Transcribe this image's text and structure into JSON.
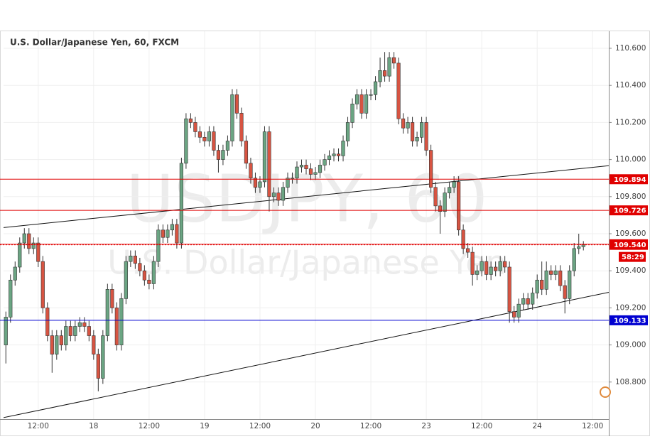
{
  "chart_data": {
    "type": "candlestick",
    "title": "U.S. Dollar/Japanese Yen, 60, FXCM",
    "watermark": "USDJPY, 60",
    "watermark_subtitle": "U.S. Dollar/Japanese Yen",
    "categories": [
      null,
      null,
      null,
      null,
      null,
      null,
      null,
      "12:00",
      null,
      null,
      null,
      null,
      null,
      null,
      null,
      null,
      null,
      null,
      null,
      "18",
      null,
      null,
      null,
      null,
      null,
      null,
      null,
      null,
      null,
      null,
      null,
      "12:00",
      null,
      null,
      null,
      null,
      null,
      null,
      null,
      null,
      null,
      null,
      null,
      "19",
      null,
      null,
      null,
      null,
      null,
      null,
      null,
      null,
      null,
      null,
      null,
      "12:00",
      null,
      null,
      null,
      null,
      null,
      null,
      null,
      null,
      null,
      null,
      null,
      "20",
      null,
      null,
      null,
      null,
      null,
      null,
      null,
      null,
      null,
      null,
      null,
      "12:00",
      null,
      null,
      null,
      null,
      null,
      null,
      null,
      null,
      null,
      null,
      null,
      "23",
      null,
      null,
      null,
      null,
      null,
      null,
      null,
      null,
      null,
      null,
      null,
      "12:00",
      null,
      null,
      null,
      null,
      null,
      null,
      null,
      null,
      null,
      null,
      null,
      "24",
      null,
      null,
      null,
      null,
      null,
      null,
      null,
      null,
      null,
      null,
      null,
      "12:00",
      null,
      null,
      null
    ],
    "open": [
      109.0,
      109.15,
      109.35,
      109.42,
      109.55,
      109.6,
      109.52,
      109.55,
      109.45,
      109.2,
      109.05,
      108.95,
      109.05,
      109.0,
      109.1,
      109.05,
      109.1,
      109.12,
      109.1,
      109.05,
      108.95,
      108.82,
      109.05,
      109.3,
      109.2,
      109.0,
      109.25,
      109.45,
      109.48,
      109.44,
      109.4,
      109.35,
      109.33,
      109.45,
      109.62,
      109.58,
      109.62,
      109.65,
      109.55,
      109.98,
      110.22,
      110.2,
      110.15,
      110.12,
      110.1,
      110.15,
      110.05,
      110.0,
      110.05,
      110.1,
      110.35,
      110.25,
      110.1,
      109.98,
      109.9,
      109.85,
      109.88,
      110.15,
      109.8,
      109.82,
      109.78,
      109.85,
      109.9,
      109.9,
      109.96,
      109.97,
      109.95,
      109.92,
      109.93,
      109.97,
      110.0,
      110.02,
      110.03,
      110.02,
      110.1,
      110.2,
      110.3,
      110.35,
      110.25,
      110.35,
      110.35,
      110.42,
      110.48,
      110.45,
      110.55,
      110.52,
      110.22,
      110.17,
      110.2,
      110.1,
      110.12,
      110.2,
      110.05,
      109.85,
      109.75,
      109.72,
      109.82,
      109.85,
      109.88,
      109.62,
      109.52,
      109.5,
      109.38,
      109.4,
      109.45,
      109.38,
      109.42,
      109.4,
      109.45,
      109.42,
      109.18,
      109.15,
      109.22,
      109.25,
      109.22,
      109.28,
      109.35,
      109.3,
      109.4,
      109.38,
      109.4,
      109.32,
      109.25,
      109.4,
      109.52,
      109.53,
      null,
      null,
      null,
      null,
      null
    ],
    "high": [
      109.18,
      109.38,
      109.45,
      109.58,
      109.63,
      109.63,
      109.58,
      109.58,
      109.48,
      109.23,
      109.08,
      109.08,
      109.08,
      109.13,
      109.13,
      109.13,
      109.15,
      109.15,
      109.13,
      109.08,
      108.98,
      109.08,
      109.33,
      109.33,
      109.23,
      109.28,
      109.48,
      109.51,
      109.51,
      109.47,
      109.43,
      109.38,
      109.48,
      109.65,
      109.65,
      109.65,
      109.68,
      109.68,
      110.01,
      110.25,
      110.25,
      110.23,
      110.18,
      110.15,
      110.18,
      110.18,
      110.08,
      110.08,
      110.13,
      110.38,
      110.38,
      110.28,
      110.13,
      110.01,
      109.93,
      109.91,
      110.18,
      110.18,
      109.85,
      109.85,
      109.88,
      109.93,
      109.93,
      109.99,
      110.0,
      110.0,
      109.98,
      109.96,
      110.0,
      110.03,
      110.05,
      110.06,
      110.06,
      110.13,
      110.23,
      110.33,
      110.38,
      110.38,
      110.38,
      110.38,
      110.45,
      110.55,
      110.58,
      110.58,
      110.58,
      110.55,
      110.25,
      110.23,
      110.23,
      110.15,
      110.23,
      110.23,
      110.08,
      109.88,
      109.78,
      109.85,
      109.88,
      109.91,
      109.91,
      109.65,
      109.55,
      109.53,
      109.43,
      109.48,
      109.48,
      109.45,
      109.45,
      109.48,
      109.48,
      109.45,
      109.21,
      109.25,
      109.28,
      109.28,
      109.31,
      109.38,
      109.45,
      109.45,
      109.43,
      109.43,
      109.43,
      109.35,
      109.43,
      109.55,
      109.6,
      109.56,
      null,
      null,
      null,
      null,
      null
    ],
    "low": [
      108.9,
      109.12,
      109.32,
      109.39,
      109.52,
      109.49,
      109.49,
      109.42,
      109.17,
      109.02,
      108.85,
      108.92,
      108.97,
      108.97,
      109.02,
      109.02,
      109.07,
      109.07,
      109.02,
      108.92,
      108.75,
      108.79,
      109.02,
      109.17,
      108.97,
      108.97,
      109.22,
      109.42,
      109.41,
      109.37,
      109.32,
      109.3,
      109.3,
      109.42,
      109.55,
      109.55,
      109.59,
      109.52,
      109.52,
      109.95,
      110.17,
      110.12,
      110.09,
      110.07,
      110.07,
      110.02,
      109.93,
      109.97,
      110.02,
      110.07,
      110.22,
      110.07,
      109.95,
      109.87,
      109.82,
      109.82,
      109.85,
      109.72,
      109.77,
      109.75,
      109.75,
      109.82,
      109.87,
      109.87,
      109.93,
      109.92,
      109.89,
      109.89,
      109.9,
      109.94,
      109.97,
      109.99,
      109.99,
      109.99,
      110.07,
      110.17,
      110.27,
      110.22,
      110.22,
      110.32,
      110.32,
      110.39,
      110.42,
      110.42,
      110.49,
      110.19,
      110.14,
      110.14,
      110.07,
      110.07,
      110.09,
      110.02,
      109.82,
      109.72,
      109.6,
      109.69,
      109.79,
      109.82,
      109.59,
      109.49,
      109.47,
      109.32,
      109.35,
      109.37,
      109.35,
      109.35,
      109.37,
      109.37,
      109.39,
      109.12,
      109.12,
      109.12,
      109.19,
      109.19,
      109.19,
      109.25,
      109.27,
      109.27,
      109.35,
      109.35,
      109.29,
      109.17,
      109.22,
      109.37,
      109.49,
      109.51,
      null,
      null,
      null,
      null,
      null
    ],
    "close": [
      109.15,
      109.35,
      109.42,
      109.55,
      109.6,
      109.52,
      109.55,
      109.45,
      109.2,
      109.05,
      108.95,
      109.05,
      109.0,
      109.1,
      109.05,
      109.1,
      109.12,
      109.1,
      109.05,
      108.95,
      108.82,
      109.05,
      109.3,
      109.2,
      109.0,
      109.25,
      109.45,
      109.48,
      109.44,
      109.4,
      109.35,
      109.33,
      109.45,
      109.62,
      109.58,
      109.62,
      109.65,
      109.55,
      109.98,
      110.22,
      110.2,
      110.15,
      110.12,
      110.1,
      110.15,
      110.05,
      110.0,
      110.05,
      110.1,
      110.35,
      110.25,
      110.1,
      109.98,
      109.9,
      109.85,
      109.88,
      110.15,
      109.8,
      109.82,
      109.78,
      109.85,
      109.9,
      109.9,
      109.96,
      109.97,
      109.95,
      109.92,
      109.93,
      109.97,
      110.0,
      110.02,
      110.03,
      110.02,
      110.1,
      110.2,
      110.3,
      110.35,
      110.25,
      110.35,
      110.35,
      110.42,
      110.48,
      110.45,
      110.55,
      110.52,
      110.22,
      110.17,
      110.2,
      110.1,
      110.12,
      110.2,
      110.05,
      109.85,
      109.75,
      109.72,
      109.82,
      109.85,
      109.88,
      109.62,
      109.52,
      109.5,
      109.38,
      109.4,
      109.45,
      109.38,
      109.42,
      109.4,
      109.45,
      109.42,
      109.18,
      109.15,
      109.22,
      109.25,
      109.22,
      109.28,
      109.35,
      109.3,
      109.4,
      109.38,
      109.4,
      109.32,
      109.25,
      109.4,
      109.52,
      109.53,
      109.54,
      null,
      null,
      null,
      null,
      null
    ],
    "up_color": "#6ba583",
    "down_color": "#d75442",
    "ylim": [
      108.6,
      110.692
    ],
    "yticks": [
      {
        "value": 108.8,
        "label": "108.800"
      },
      {
        "value": 109.0,
        "label": "109.000"
      },
      {
        "value": 109.2,
        "label": "109.200"
      },
      {
        "value": 109.4,
        "label": "109.400"
      },
      {
        "value": 109.6,
        "label": "109.600"
      },
      {
        "value": 109.8,
        "label": "109.800"
      },
      {
        "value": 110.0,
        "label": "110.000"
      },
      {
        "value": 110.2,
        "label": "110.200"
      },
      {
        "value": 110.4,
        "label": "110.400"
      },
      {
        "value": 110.6,
        "label": "110.600"
      }
    ],
    "grid": true,
    "levels": [
      {
        "value": 109.894,
        "color": "#e00000"
      },
      {
        "value": 109.726,
        "color": "#e00000"
      },
      {
        "value": 109.543,
        "color": "#e00000"
      },
      {
        "value": 109.54,
        "label": "109.540",
        "color": "#e00000",
        "dashed": true
      },
      {
        "value": 109.133,
        "color": "#0000d0"
      }
    ],
    "countdown": "58:29",
    "trendlines": [
      {
        "values": [
          109.633,
          109.967
        ]
      },
      {
        "values": [
          108.608,
          109.284
        ]
      }
    ]
  }
}
